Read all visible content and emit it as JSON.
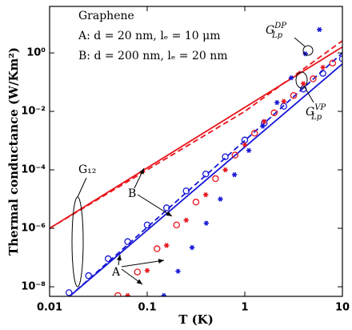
{
  "chart_data": {
    "type": "scatter",
    "xlabel": "T (K)",
    "ylabel": "Thermal conductance (W/Km²)",
    "xscale": "log",
    "yscale": "log",
    "xlim": [
      0.01,
      10
    ],
    "ylim": [
      4.7e-09,
      39
    ],
    "xticks": [
      0.01,
      0.1,
      1,
      10
    ],
    "yticks": [
      {
        "value": 1e-08,
        "label": "10⁻⁸"
      },
      {
        "value": 1e-06,
        "label": "10⁻⁶"
      },
      {
        "value": 0.0001,
        "label": "10⁻⁴"
      },
      {
        "value": 0.01,
        "label": "10⁻²"
      },
      {
        "value": 1,
        "label": "10⁰"
      }
    ],
    "notes": [
      "Graphene",
      "A: d = 20 nm, lₑ = 10 μm",
      "B: d = 200 nm, lₑ = 20 nm"
    ],
    "annotations": [
      {
        "text": "A"
      },
      {
        "text": "B"
      },
      {
        "text": "G₁₂"
      },
      {
        "text": "G",
        "sub": "Lp",
        "sup": "DP"
      },
      {
        "text": "G",
        "sub": "Lp",
        "sup": "VP"
      }
    ],
    "series": [
      {
        "color": "#e8141b",
        "style": "solid",
        "x": [
          0.01,
          10
        ],
        "values": [
          1e-06,
          1.6
        ]
      },
      {
        "color": "#e8141b",
        "style": "dashed",
        "x": [
          0.01,
          1,
          10
        ],
        "values": [
          1e-06,
          0.01,
          2.6
        ]
      },
      {
        "color": "#1717d6",
        "style": "solid",
        "x": [
          0.016,
          10
        ],
        "values": [
          4.7e-09,
          0.42
        ]
      },
      {
        "color": "#1717d6",
        "style": "dashed",
        "x": [
          0.016,
          1,
          10
        ],
        "values": [
          4.7e-09,
          0.001,
          1
        ]
      },
      {
        "color": "#1717d6",
        "marker": "circle",
        "x": [
          0.0158,
          0.0251,
          0.0398,
          0.0631,
          0.1,
          0.158,
          0.251,
          0.398,
          0.631,
          1,
          1.58,
          2.51,
          3.98,
          6.31,
          10
        ],
        "values": [
          6.3e-09,
          2.4e-08,
          9.1e-08,
          3.5e-07,
          1.3e-06,
          5e-06,
          1.9e-05,
          7.2e-05,
          0.00028,
          0.00105,
          0.004,
          0.015,
          0.058,
          0.2,
          0.63
        ]
      },
      {
        "color": "#e8141b",
        "marker": "circle",
        "x": [
          0.0501,
          0.0794,
          0.126,
          0.2,
          0.316,
          0.501,
          0.794,
          1.26,
          2,
          3.16,
          5.01,
          7.94
        ],
        "values": [
          5e-09,
          3.2e-08,
          2e-07,
          1.3e-06,
          7.9e-06,
          5e-05,
          0.00032,
          0.0018,
          0.0089,
          0.035,
          0.13,
          0.45
        ]
      },
      {
        "color": "#1717d6",
        "marker": "star",
        "x": [
          0.148,
          0.207,
          0.288,
          0.403,
          0.562,
          0.785,
          1.1,
          1.53,
          2.14,
          2.99,
          4.17,
          5.82
        ],
        "values": [
          5e-09,
          3.4e-08,
          2.2e-07,
          1.5e-06,
          1e-05,
          6.8e-05,
          0.00046,
          0.0031,
          0.02,
          0.14,
          0.93,
          6.3
        ]
      },
      {
        "color": "#e8141b",
        "marker": "star",
        "x": [
          0.0631,
          0.1,
          0.158,
          0.251,
          0.398,
          0.631,
          1,
          1.58,
          2.51,
          3.98,
          6.31
        ],
        "values": [
          5e-09,
          3.6e-08,
          2.6e-07,
          1.9e-06,
          1.4e-05,
          0.0001,
          0.00072,
          0.0045,
          0.022,
          0.089,
          0.32
        ]
      }
    ]
  }
}
